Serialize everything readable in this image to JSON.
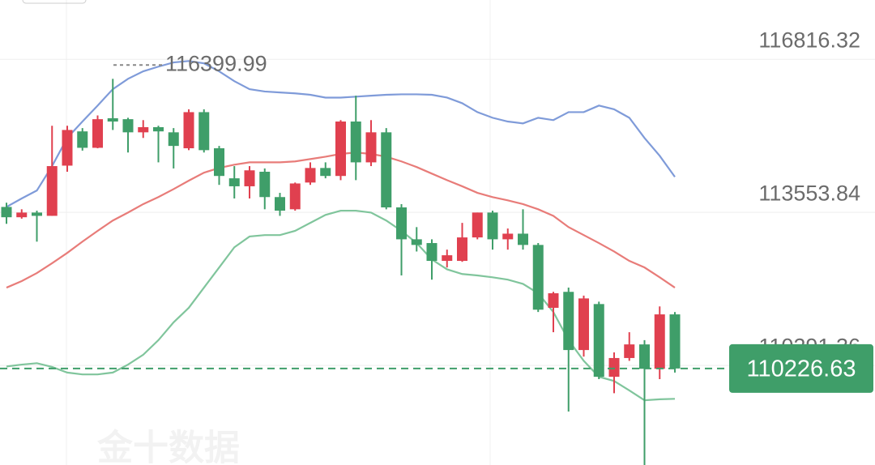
{
  "chart_data": {
    "type": "candlestick",
    "open": [
      113670,
      113450,
      113550,
      113480,
      114550,
      115280,
      114930,
      115560,
      115540,
      115260,
      115370,
      115260,
      114920,
      115690,
      114920,
      114280,
      114110,
      114420,
      113880,
      113620,
      114190,
      114500,
      114330,
      115490,
      114620,
      115260,
      113660,
      112980,
      112900,
      112520,
      112520,
      113020,
      113550,
      112980,
      113100,
      112860,
      111520,
      111860,
      110620,
      111600,
      110050,
      110450,
      110740,
      110220,
      111380
    ],
    "high": [
      113760,
      113620,
      113590,
      115400,
      115400,
      115350,
      115620,
      116399.99,
      115570,
      115520,
      115400,
      115350,
      115750,
      115750,
      114970,
      114540,
      114540,
      114490,
      113970,
      114190,
      114620,
      114620,
      115520,
      116040,
      115520,
      115350,
      113730,
      113240,
      112980,
      112760,
      113330,
      113550,
      113590,
      113210,
      113620,
      112900,
      111860,
      111950,
      111780,
      111650,
      110570,
      111000,
      110830,
      111550,
      111430
    ],
    "low": [
      113310,
      113420,
      112930,
      113480,
      114420,
      114870,
      114920,
      115310,
      114830,
      115140,
      114620,
      114490,
      114880,
      114830,
      114140,
      113850,
      113850,
      113620,
      113480,
      113590,
      114140,
      114280,
      114240,
      114240,
      114540,
      113620,
      112210,
      112720,
      112120,
      112380,
      112500,
      112980,
      112760,
      112760,
      112760,
      111430,
      111000,
      109310,
      110480,
      110000,
      109700,
      110390,
      108170,
      110000,
      110140
    ],
    "close": [
      113450,
      113550,
      113480,
      114540,
      115310,
      114930,
      115540,
      115490,
      115260,
      115370,
      115280,
      114970,
      115690,
      114880,
      114330,
      114110,
      114450,
      113880,
      113590,
      114170,
      114500,
      114330,
      115490,
      114620,
      115260,
      113660,
      112980,
      112860,
      112520,
      112640,
      113020,
      113550,
      112980,
      113100,
      112860,
      111480,
      111830,
      110620,
      111720,
      110050,
      110450,
      110740,
      110220,
      111380,
      110226.63
    ],
    "up_color": "#e0404f",
    "down_color": "#3f9e69",
    "series": [
      {
        "color": "#7f9bd9",
        "values": [
          113670,
          113850,
          114020,
          114540,
          115140,
          115490,
          115830,
          116180,
          116400,
          116560,
          116660,
          116750,
          116780,
          116730,
          116560,
          116350,
          116180,
          116130,
          116110,
          116090,
          116060,
          116000,
          116000,
          116020,
          116040,
          116060,
          116070,
          116070,
          116060,
          116000,
          115880,
          115690,
          115570,
          115490,
          115450,
          115570,
          115520,
          115690,
          115690,
          115830,
          115750,
          115570,
          115140,
          114760,
          114310
        ]
      },
      {
        "color": "#e87c79",
        "values": [
          111950,
          112090,
          112260,
          112470,
          112690,
          112930,
          113160,
          113380,
          113550,
          113730,
          113880,
          114050,
          114230,
          114400,
          114500,
          114570,
          114620,
          114620,
          114620,
          114640,
          114690,
          114740,
          114800,
          114830,
          114800,
          114740,
          114640,
          114520,
          114380,
          114240,
          114110,
          113970,
          113880,
          113810,
          113730,
          113620,
          113480,
          113240,
          113070,
          112900,
          112720,
          112520,
          112380,
          112170,
          111950
        ]
      },
      {
        "color": "#80c59c",
        "values": [
          110270,
          110310,
          110340,
          110260,
          110140,
          110100,
          110100,
          110140,
          110310,
          110520,
          110830,
          111210,
          111520,
          111950,
          112380,
          112810,
          113040,
          113070,
          113070,
          113160,
          113330,
          113500,
          113590,
          113590,
          113550,
          113380,
          113160,
          112900,
          112550,
          112340,
          112240,
          112210,
          112170,
          112120,
          112030,
          111830,
          111430,
          110830,
          110390,
          110050,
          109960,
          109760,
          109550,
          109570,
          109580
        ]
      }
    ],
    "ylim": [
      108170,
      118080
    ],
    "yticks": [
      116816.32,
      113553.84,
      110291.36
    ],
    "grid": true,
    "max_annotation": 116399.99,
    "last_price": 110226.63,
    "last_price_color": "#3f9e69",
    "watermark": "金十数据"
  }
}
